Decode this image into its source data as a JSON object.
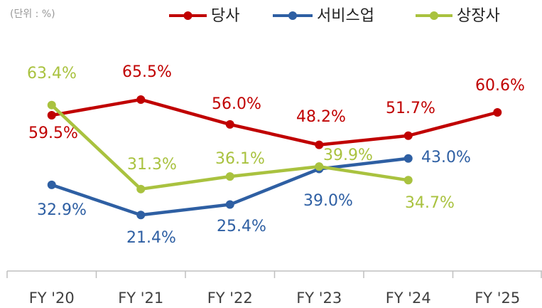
{
  "chart_data": {
    "type": "line",
    "unit_note": "(단위 : %)",
    "categories": [
      "FY '20",
      "FY '21",
      "FY '22",
      "FY '23",
      "FY '24",
      "FY '25"
    ],
    "series": [
      {
        "name": "당사",
        "color": "#c00000",
        "values": [
          59.5,
          65.5,
          56.0,
          48.2,
          51.7,
          60.6
        ],
        "value_labels": [
          "59.5%",
          "65.5%",
          "56.0%",
          "48.2%",
          "51.7%",
          "60.6%"
        ]
      },
      {
        "name": "서비스업",
        "color": "#2e5fa3",
        "values": [
          32.9,
          21.4,
          25.4,
          39.0,
          43.0,
          null
        ],
        "value_labels": [
          "32.9%",
          "21.4%",
          "25.4%",
          "39.0%",
          "43.0%",
          null
        ]
      },
      {
        "name": "상장사",
        "color": "#a9c23f",
        "values": [
          63.4,
          31.3,
          36.1,
          39.9,
          34.7,
          null
        ],
        "value_labels": [
          "63.4%",
          "31.3%",
          "36.1%",
          "39.9%",
          "34.7%",
          null
        ]
      }
    ],
    "ylim": [
      0,
      100
    ],
    "legend": "top"
  }
}
